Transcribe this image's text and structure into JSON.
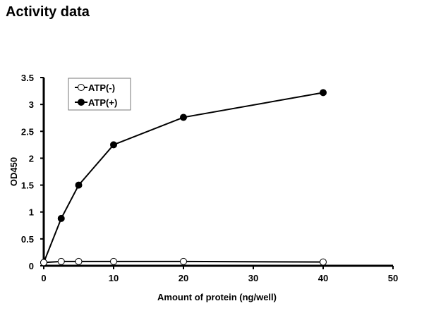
{
  "page_title": "Activity data",
  "chart_data": {
    "type": "line",
    "title": "Activity data",
    "xlabel": "Amount of protein (ng/well)",
    "ylabel": "OD450",
    "xlim": [
      0,
      50
    ],
    "ylim": [
      0,
      3.5
    ],
    "xticks": [
      "0",
      "10",
      "20",
      "30",
      "40",
      "50"
    ],
    "yticks": [
      "0",
      "0.5",
      "1",
      "1.5",
      "2",
      "2.5",
      "3",
      "3.5"
    ],
    "grid": false,
    "legend_position": "top-left",
    "series": [
      {
        "name": "ATP(-)",
        "marker": "open-circle",
        "x": [
          0,
          2.5,
          5,
          10,
          20,
          40
        ],
        "y": [
          0.06,
          0.08,
          0.08,
          0.08,
          0.08,
          0.07
        ]
      },
      {
        "name": "ATP(+)",
        "marker": "filled-circle",
        "x": [
          0,
          2.5,
          5,
          10,
          20,
          40
        ],
        "y": [
          0.06,
          0.88,
          1.5,
          2.25,
          2.76,
          3.22
        ]
      }
    ]
  }
}
